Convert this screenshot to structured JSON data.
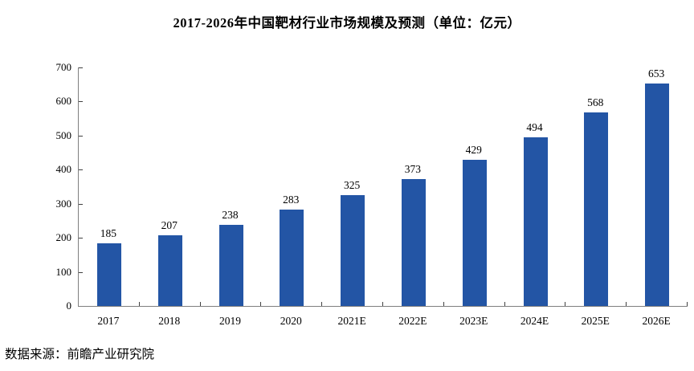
{
  "title": "2017-2026年中国靶材行业市场规模及预测（单位：亿元）",
  "source_note": "数据来源：前瞻产业研究院",
  "colors": {
    "bar": "#2355a5",
    "axis": "#7f7f7f",
    "tick": "#404040",
    "text": "#000000",
    "background": "#ffffff"
  },
  "chart_data": {
    "type": "bar",
    "categories": [
      "2017",
      "2018",
      "2019",
      "2020",
      "2021E",
      "2022E",
      "2023E",
      "2024E",
      "2025E",
      "2026E"
    ],
    "values": [
      185,
      207,
      238,
      283,
      325,
      373,
      429,
      494,
      568,
      653
    ],
    "title": "2017-2026年中国靶材行业市场规模及预测（单位：亿元）",
    "xlabel": "",
    "ylabel": "",
    "ylim": [
      0,
      700
    ],
    "ytick_step": 100,
    "grid": false,
    "legend": "none",
    "value_labels": true,
    "bar_color": "#2355a5"
  }
}
